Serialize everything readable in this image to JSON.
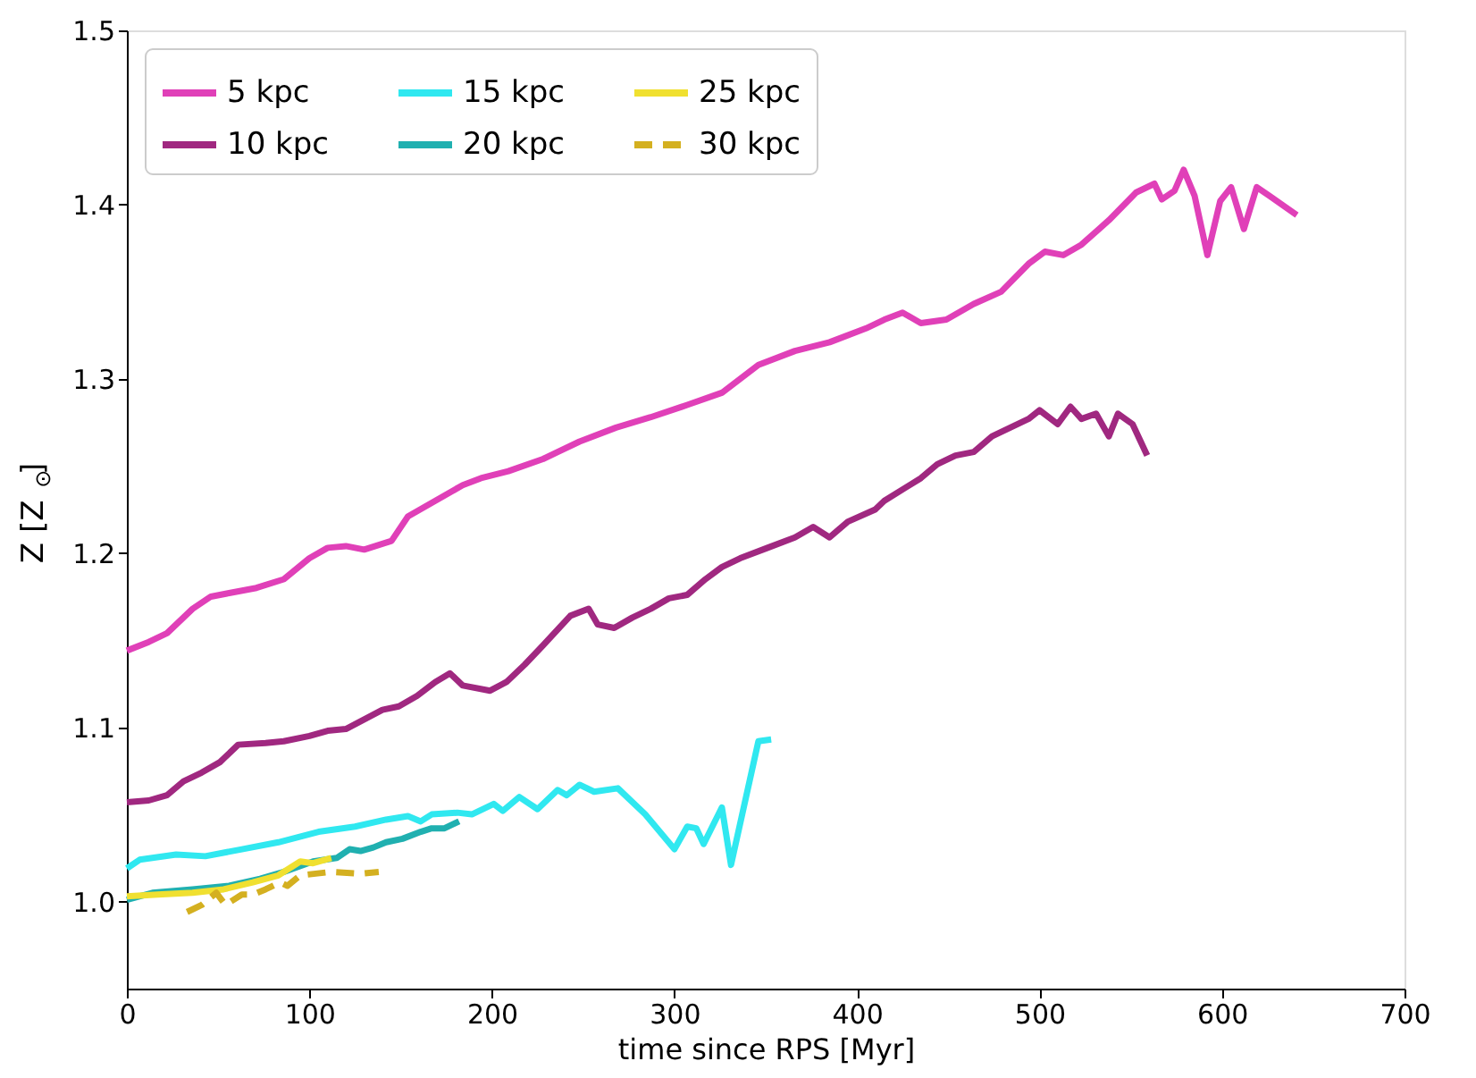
{
  "chart_data": {
    "type": "line",
    "xlabel": "time since RPS [Myr]",
    "ylabel": "Z [Z$_{⊙}$]",
    "xlim": [
      0,
      700
    ],
    "xticks": [
      0,
      100,
      200,
      300,
      400,
      500,
      600,
      700
    ],
    "ylim": [
      0.95,
      1.5
    ],
    "yticks": [
      {
        "value": 1.0,
        "label": "1.0"
      },
      1.1,
      1.2,
      1.3,
      1.4,
      1.5
    ],
    "grid": false,
    "legend": "top left",
    "marker": "none",
    "series": [
      {
        "name": "5 kpc",
        "color": "#e040b8",
        "line_style": "solid",
        "x": [
          0,
          12,
          22,
          36,
          46,
          56,
          71,
          86,
          100,
          110,
          120,
          130,
          145,
          154,
          169,
          184,
          194,
          209,
          228,
          248,
          268,
          287,
          307,
          326,
          346,
          366,
          385,
          405,
          415,
          425,
          435,
          449,
          464,
          479,
          494,
          503,
          513,
          523,
          538,
          553,
          563,
          567,
          574,
          579,
          585,
          592,
          599,
          605,
          612,
          619,
          626,
          641
        ],
        "values": [
          1.144,
          1.149,
          1.154,
          1.168,
          1.175,
          1.177,
          1.18,
          1.185,
          1.197,
          1.203,
          1.204,
          1.202,
          1.207,
          1.221,
          1.23,
          1.239,
          1.243,
          1.247,
          1.254,
          1.264,
          1.272,
          1.278,
          1.285,
          1.292,
          1.308,
          1.316,
          1.321,
          1.329,
          1.334,
          1.338,
          1.332,
          1.334,
          1.343,
          1.35,
          1.366,
          1.373,
          1.371,
          1.377,
          1.391,
          1.407,
          1.412,
          1.403,
          1.408,
          1.42,
          1.405,
          1.371,
          1.402,
          1.41,
          1.386,
          1.41,
          1.405,
          1.394
        ]
      },
      {
        "name": "10 kpc",
        "color": "#a02880",
        "line_style": "solid",
        "x": [
          0,
          12,
          22,
          31,
          41,
          51,
          61,
          76,
          86,
          100,
          110,
          120,
          140,
          149,
          159,
          169,
          177,
          184,
          199,
          208,
          218,
          228,
          243,
          253,
          258,
          267,
          277,
          287,
          297,
          307,
          317,
          326,
          336,
          351,
          366,
          376,
          385,
          395,
          410,
          415,
          435,
          444,
          454,
          464,
          474,
          484,
          494,
          500,
          510,
          517,
          523,
          531,
          538,
          543,
          551,
          559
        ],
        "values": [
          1.057,
          1.058,
          1.061,
          1.069,
          1.074,
          1.08,
          1.09,
          1.091,
          1.092,
          1.095,
          1.098,
          1.099,
          1.11,
          1.112,
          1.118,
          1.126,
          1.131,
          1.124,
          1.121,
          1.126,
          1.136,
          1.147,
          1.164,
          1.168,
          1.159,
          1.157,
          1.163,
          1.168,
          1.174,
          1.176,
          1.185,
          1.192,
          1.197,
          1.203,
          1.209,
          1.215,
          1.209,
          1.218,
          1.225,
          1.23,
          1.243,
          1.251,
          1.256,
          1.258,
          1.267,
          1.272,
          1.277,
          1.282,
          1.274,
          1.284,
          1.277,
          1.28,
          1.267,
          1.28,
          1.274,
          1.256
        ]
      },
      {
        "name": "15 kpc",
        "color": "#30e8f0",
        "line_style": "solid",
        "x": [
          0,
          7,
          27,
          43,
          63,
          83,
          105,
          125,
          142,
          154,
          161,
          167,
          181,
          189,
          201,
          206,
          215,
          225,
          236,
          241,
          248,
          256,
          269,
          284,
          300,
          307,
          312,
          316,
          326,
          331,
          346,
          353
        ],
        "values": [
          1.019,
          1.024,
          1.027,
          1.026,
          1.03,
          1.034,
          1.04,
          1.043,
          1.047,
          1.049,
          1.046,
          1.05,
          1.051,
          1.05,
          1.056,
          1.052,
          1.06,
          1.053,
          1.064,
          1.061,
          1.067,
          1.063,
          1.065,
          1.05,
          1.03,
          1.043,
          1.042,
          1.033,
          1.054,
          1.021,
          1.092,
          1.093
        ]
      },
      {
        "name": "20 kpc",
        "color": "#20b0b0",
        "line_style": "solid",
        "x": [
          0,
          14,
          36,
          56,
          73,
          86,
          102,
          115,
          122,
          128,
          135,
          142,
          151,
          161,
          167,
          174,
          182
        ],
        "values": [
          1.001,
          1.005,
          1.007,
          1.009,
          1.013,
          1.017,
          1.023,
          1.025,
          1.03,
          1.029,
          1.031,
          1.034,
          1.036,
          1.04,
          1.042,
          1.042,
          1.046
        ]
      },
      {
        "name": "25 kpc",
        "color": "#f0e030",
        "line_style": "solid",
        "x": [
          0,
          17,
          36,
          53,
          69,
          83,
          95,
          102,
          112
        ],
        "values": [
          1.003,
          1.004,
          1.005,
          1.007,
          1.011,
          1.015,
          1.023,
          1.022,
          1.025
        ]
      },
      {
        "name": "30 kpc",
        "color": "#d4b020",
        "line_style": "dashed",
        "x": [
          33,
          41,
          49,
          54,
          63,
          69,
          76,
          84,
          88,
          95,
          112,
          128,
          138
        ],
        "values": [
          0.994,
          0.998,
          1.005,
          0.998,
          1.004,
          1.004,
          1.007,
          1.011,
          1.009,
          1.015,
          1.017,
          1.016,
          1.017
        ]
      }
    ]
  }
}
